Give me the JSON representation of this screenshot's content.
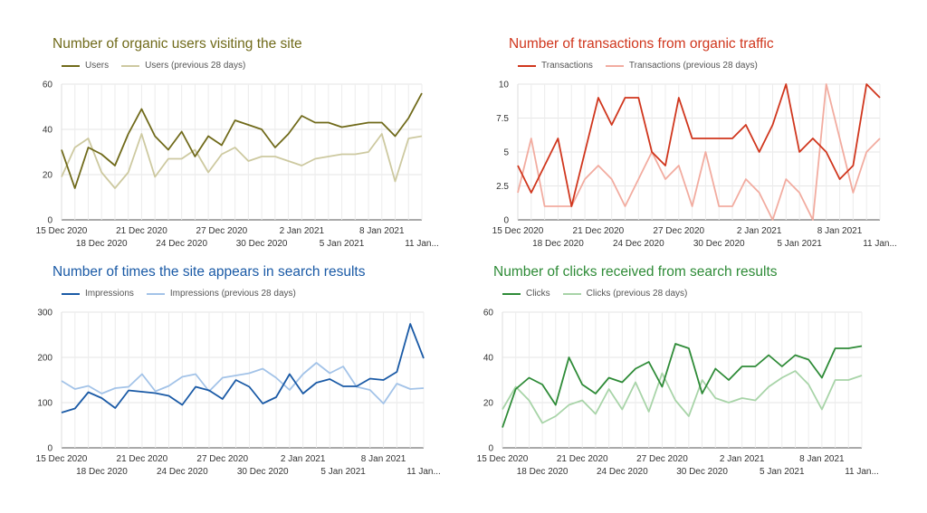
{
  "chart_data": [
    {
      "type": "line",
      "title": "Number of organic users visiting the site",
      "title_color": "#706a1a",
      "x": [
        "15 Dec 2020",
        "16 Dec 2020",
        "17 Dec 2020",
        "18 Dec 2020",
        "19 Dec 2020",
        "20 Dec 2020",
        "21 Dec 2020",
        "22 Dec 2020",
        "23 Dec 2020",
        "24 Dec 2020",
        "25 Dec 2020",
        "26 Dec 2020",
        "27 Dec 2020",
        "28 Dec 2020",
        "29 Dec 2020",
        "30 Dec 2020",
        "31 Dec 2020",
        "1 Jan 2021",
        "2 Jan 2021",
        "3 Jan 2021",
        "4 Jan 2021",
        "5 Jan 2021",
        "6 Jan 2021",
        "7 Jan 2021",
        "8 Jan 2021",
        "9 Jan 2021",
        "10 Jan 2021",
        "11 Jan 2021"
      ],
      "x_ticks_top": [
        "15 Dec 2020",
        "21 Dec 2020",
        "27 Dec 2020",
        "2 Jan 2021",
        "8 Jan 2021"
      ],
      "x_ticks_bottom": [
        "18 Dec 2020",
        "24 Dec 2020",
        "30 Dec 2020",
        "5 Jan 2021",
        "11 Jan..."
      ],
      "ylim": [
        0,
        60
      ],
      "yticks": [
        "0",
        "20",
        "40",
        "60"
      ],
      "series": [
        {
          "name": "Users",
          "color": "#706a1a",
          "values": [
            31,
            14,
            32,
            29,
            24,
            38,
            49,
            37,
            31,
            39,
            28,
            37,
            33,
            44,
            42,
            40,
            32,
            38,
            46,
            43,
            43,
            41,
            42,
            43,
            43,
            37,
            45,
            56
          ]
        },
        {
          "name": "Users (previous 28 days)",
          "color": "#cdc9a0",
          "values": [
            19,
            32,
            36,
            21,
            14,
            21,
            38,
            19,
            27,
            27,
            31,
            21,
            29,
            32,
            26,
            28,
            28,
            26,
            24,
            27,
            28,
            29,
            29,
            30,
            38,
            17,
            36,
            37
          ]
        }
      ]
    },
    {
      "type": "line",
      "title": "Number of transactions from organic traffic",
      "title_color": "#d0361d",
      "x": [
        "15 Dec 2020",
        "16 Dec 2020",
        "17 Dec 2020",
        "18 Dec 2020",
        "19 Dec 2020",
        "20 Dec 2020",
        "21 Dec 2020",
        "22 Dec 2020",
        "23 Dec 2020",
        "24 Dec 2020",
        "25 Dec 2020",
        "26 Dec 2020",
        "27 Dec 2020",
        "28 Dec 2020",
        "29 Dec 2020",
        "30 Dec 2020",
        "31 Dec 2020",
        "1 Jan 2021",
        "2 Jan 2021",
        "3 Jan 2021",
        "4 Jan 2021",
        "5 Jan 2021",
        "6 Jan 2021",
        "7 Jan 2021",
        "8 Jan 2021",
        "9 Jan 2021",
        "10 Jan 2021",
        "11 Jan 2021"
      ],
      "x_ticks_top": [
        "15 Dec 2020",
        "21 Dec 2020",
        "27 Dec 2020",
        "2 Jan 2021",
        "8 Jan 2021"
      ],
      "x_ticks_bottom": [
        "18 Dec 2020",
        "24 Dec 2020",
        "30 Dec 2020",
        "5 Jan 2021",
        "11 Jan..."
      ],
      "ylim": [
        0,
        10
      ],
      "yticks": [
        "0",
        "2.5",
        "5",
        "7.5",
        "10"
      ],
      "series": [
        {
          "name": "Transactions",
          "color": "#d0361d",
          "values": [
            4,
            2,
            4,
            6,
            1,
            5,
            9,
            7,
            9,
            9,
            5,
            4,
            9,
            6,
            6,
            6,
            6,
            7,
            5,
            7,
            10,
            5,
            6,
            5,
            3,
            4,
            10,
            9
          ]
        },
        {
          "name": "Transactions (previous 28 days)",
          "color": "#f2aca0",
          "values": [
            2,
            6,
            1,
            1,
            1,
            3,
            4,
            3,
            1,
            3,
            5,
            3,
            4,
            1,
            5,
            1,
            1,
            3,
            2,
            0,
            3,
            2,
            0,
            10,
            6,
            2,
            5,
            6
          ]
        }
      ]
    },
    {
      "type": "line",
      "title": "Number of times the site appears in search results",
      "title_color": "#1a5aa6",
      "x": [
        "15 Dec 2020",
        "16 Dec 2020",
        "17 Dec 2020",
        "18 Dec 2020",
        "19 Dec 2020",
        "20 Dec 2020",
        "21 Dec 2020",
        "22 Dec 2020",
        "23 Dec 2020",
        "24 Dec 2020",
        "25 Dec 2020",
        "26 Dec 2020",
        "27 Dec 2020",
        "28 Dec 2020",
        "29 Dec 2020",
        "30 Dec 2020",
        "31 Dec 2020",
        "1 Jan 2021",
        "2 Jan 2021",
        "3 Jan 2021",
        "4 Jan 2021",
        "5 Jan 2021",
        "6 Jan 2021",
        "7 Jan 2021",
        "8 Jan 2021",
        "9 Jan 2021",
        "10 Jan 2021",
        "11 Jan 2021"
      ],
      "x_ticks_top": [
        "15 Dec 2020",
        "21 Dec 2020",
        "27 Dec 2020",
        "2 Jan 2021",
        "8 Jan 2021"
      ],
      "x_ticks_bottom": [
        "18 Dec 2020",
        "24 Dec 2020",
        "30 Dec 2020",
        "5 Jan 2021",
        "11 Jan..."
      ],
      "ylim": [
        0,
        300
      ],
      "yticks": [
        "0",
        "100",
        "200",
        "300"
      ],
      "series": [
        {
          "name": "Impressions",
          "color": "#1a5aa6",
          "values": [
            78,
            87,
            123,
            110,
            88,
            127,
            124,
            121,
            115,
            95,
            135,
            127,
            108,
            150,
            135,
            98,
            112,
            163,
            120,
            144,
            152,
            136,
            136,
            153,
            150,
            168,
            274,
            198
          ]
        },
        {
          "name": "Impressions (previous 28 days)",
          "color": "#a3c3e8",
          "values": [
            148,
            130,
            137,
            120,
            132,
            135,
            163,
            125,
            137,
            157,
            163,
            125,
            155,
            160,
            165,
            175,
            155,
            128,
            163,
            188,
            165,
            180,
            135,
            128,
            98,
            142,
            130,
            132
          ]
        }
      ]
    },
    {
      "type": "line",
      "title": "Number of clicks received from search results",
      "title_color": "#2e8b37",
      "x": [
        "15 Dec 2020",
        "16 Dec 2020",
        "17 Dec 2020",
        "18 Dec 2020",
        "19 Dec 2020",
        "20 Dec 2020",
        "21 Dec 2020",
        "22 Dec 2020",
        "23 Dec 2020",
        "24 Dec 2020",
        "25 Dec 2020",
        "26 Dec 2020",
        "27 Dec 2020",
        "28 Dec 2020",
        "29 Dec 2020",
        "30 Dec 2020",
        "31 Dec 2020",
        "1 Jan 2021",
        "2 Jan 2021",
        "3 Jan 2021",
        "4 Jan 2021",
        "5 Jan 2021",
        "6 Jan 2021",
        "7 Jan 2021",
        "8 Jan 2021",
        "9 Jan 2021",
        "10 Jan 2021",
        "11 Jan 2021"
      ],
      "x_ticks_top": [
        "15 Dec 2020",
        "21 Dec 2020",
        "27 Dec 2020",
        "2 Jan 2021",
        "8 Jan 2021"
      ],
      "x_ticks_bottom": [
        "18 Dec 2020",
        "24 Dec 2020",
        "30 Dec 2020",
        "5 Jan 2021",
        "11 Jan..."
      ],
      "ylim": [
        0,
        60
      ],
      "yticks": [
        "0",
        "20",
        "40",
        "60"
      ],
      "series": [
        {
          "name": "Clicks",
          "color": "#2e8b37",
          "values": [
            9,
            26,
            31,
            28,
            19,
            40,
            28,
            24,
            31,
            29,
            35,
            38,
            27,
            46,
            44,
            24,
            35,
            30,
            36,
            36,
            41,
            36,
            41,
            39,
            31,
            44,
            44,
            45
          ]
        },
        {
          "name": "Clicks (previous 28 days)",
          "color": "#a8d4a8",
          "values": [
            17,
            27,
            21,
            11,
            14,
            19,
            21,
            15,
            26,
            17,
            29,
            16,
            33,
            21,
            14,
            30,
            22,
            20,
            22,
            21,
            27,
            31,
            34,
            28,
            17,
            30,
            30,
            32
          ]
        }
      ]
    }
  ]
}
